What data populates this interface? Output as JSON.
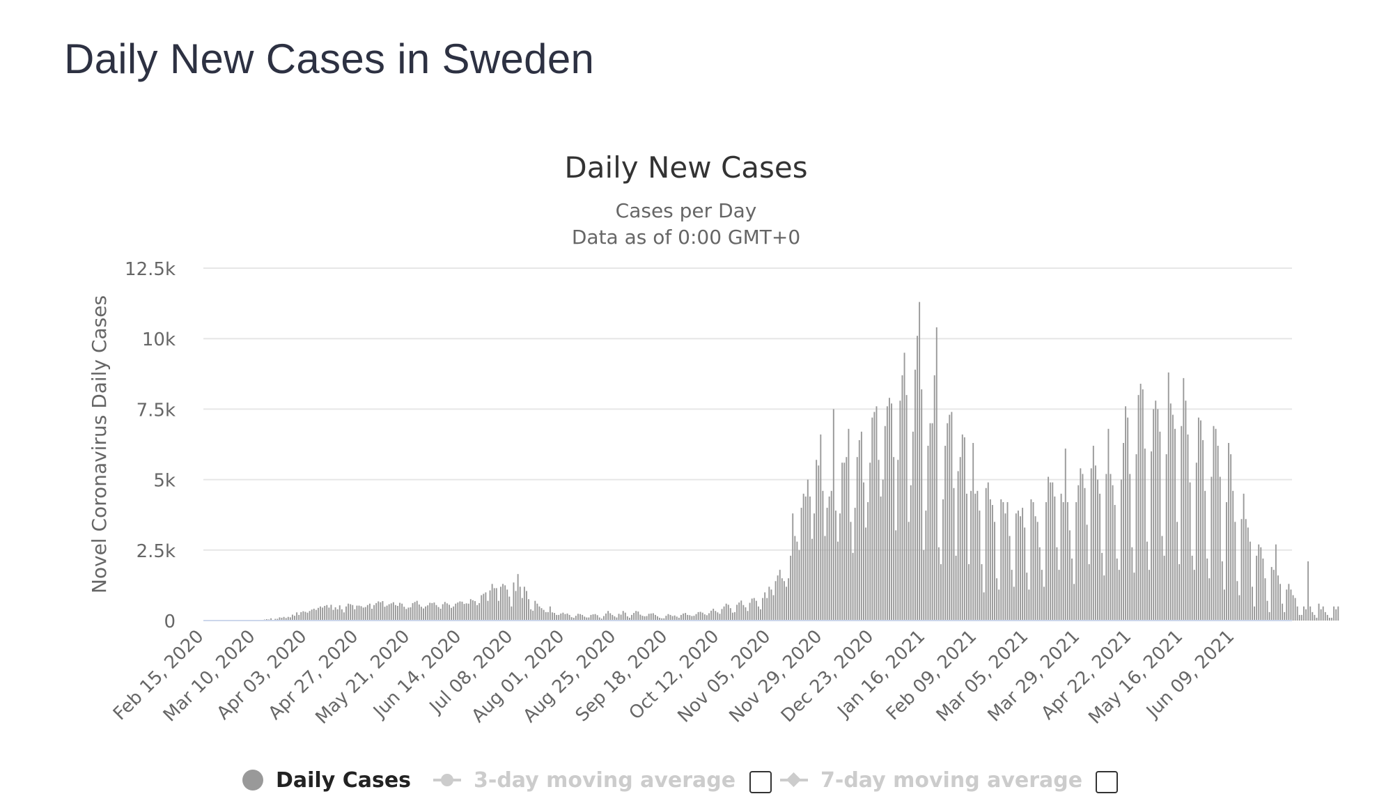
{
  "page": {
    "title": "Daily New Cases in Sweden"
  },
  "colors": {
    "bar": "#999999",
    "grid": "#e6e6e6",
    "axis": "#ccd6eb",
    "text": "#333333",
    "legend_inactive": "#cccccc"
  },
  "chart_data": {
    "type": "bar",
    "title": "Daily New Cases",
    "subtitle_lines": [
      "Cases per Day",
      "Data as of 0:00 GMT+0"
    ],
    "ylabel": "Novel Coronavirus Daily Cases",
    "xlabel": "",
    "ylim": [
      0,
      12500
    ],
    "yticks": [
      0,
      2500,
      5000,
      7500,
      10000,
      12500
    ],
    "ytick_labels": [
      "0",
      "2.5k",
      "5k",
      "7.5k",
      "10k",
      "12.5k"
    ],
    "grid": true,
    "x_start": "Feb 15, 2020",
    "x_tick_labels": [
      "Feb 15, 2020",
      "Mar 10, 2020",
      "Apr 03, 2020",
      "Apr 27, 2020",
      "May 21, 2020",
      "Jun 14, 2020",
      "Jul 08, 2020",
      "Aug 01, 2020",
      "Aug 25, 2020",
      "Sep 18, 2020",
      "Oct 12, 2020",
      "Nov 05, 2020",
      "Nov 29, 2020",
      "Dec 23, 2020",
      "Jan 16, 2021",
      "Feb 09, 2021",
      "Mar 05, 2021",
      "Mar 29, 2021",
      "Apr 22, 2021",
      "May 16, 2021",
      "Jun 09, 2021"
    ],
    "x_tick_interval_days": 24,
    "total_days": 507,
    "series": [
      {
        "name": "Daily Cases",
        "description": "Daily bar values estimated from gridlines; missing/zero days (weekends) included as 0.",
        "values": [
          0,
          0,
          0,
          0,
          0,
          0,
          0,
          0,
          0,
          0,
          0,
          0,
          0,
          0,
          0,
          0,
          0,
          0,
          0,
          0,
          0,
          0,
          0,
          0,
          0,
          1,
          10,
          14,
          36,
          50,
          40,
          80,
          20,
          61,
          63,
          114,
          100,
          129,
          92,
          131,
          115,
          210,
          170,
          290,
          200,
          300,
          330,
          310,
          280,
          340,
          390,
          420,
          380,
          450,
          500,
          460,
          520,
          550,
          460,
          560,
          380,
          470,
          400,
          540,
          400,
          290,
          500,
          600,
          580,
          550,
          400,
          530,
          530,
          510,
          460,
          480,
          550,
          600,
          420,
          550,
          620,
          680,
          650,
          690,
          490,
          530,
          580,
          610,
          650,
          550,
          520,
          630,
          600,
          490,
          410,
          460,
          470,
          620,
          660,
          700,
          570,
          490,
          430,
          500,
          540,
          630,
          620,
          640,
          550,
          480,
          420,
          580,
          660,
          610,
          560,
          450,
          500,
          600,
          640,
          680,
          670,
          590,
          610,
          600,
          760,
          720,
          690,
          550,
          620,
          900,
          950,
          1000,
          700,
          1070,
          1300,
          1150,
          1150,
          700,
          1200,
          1300,
          1250,
          1100,
          850,
          500,
          1350,
          1050,
          1650,
          1200,
          800,
          1200,
          1050,
          760,
          400,
          350,
          700,
          600,
          500,
          440,
          380,
          300,
          300,
          500,
          290,
          270,
          200,
          200,
          250,
          280,
          230,
          250,
          200,
          120,
          100,
          170,
          240,
          230,
          200,
          140,
          110,
          110,
          200,
          220,
          230,
          190,
          110,
          70,
          160,
          250,
          340,
          260,
          200,
          150,
          110,
          240,
          210,
          340,
          280,
          150,
          100,
          200,
          270,
          340,
          320,
          210,
          170,
          150,
          160,
          240,
          250,
          260,
          200,
          150,
          100,
          80,
          80,
          170,
          230,
          200,
          160,
          180,
          140,
          100,
          200,
          250,
          270,
          200,
          190,
          160,
          170,
          230,
          300,
          310,
          280,
          220,
          190,
          260,
          350,
          420,
          340,
          290,
          240,
          410,
          500,
          600,
          560,
          440,
          280,
          300,
          560,
          640,
          710,
          550,
          470,
          340,
          630,
          780,
          800,
          700,
          500,
          400,
          800,
          1000,
          800,
          1200,
          1100,
          900,
          1400,
          1600,
          1800,
          1500,
          1400,
          1200,
          1500,
          2300,
          3800,
          3000,
          2800,
          2500,
          4000,
          4500,
          4400,
          5000,
          4400,
          2900,
          3800,
          5700,
          5500,
          6600,
          4600,
          3000,
          4000,
          4400,
          4600,
          7500,
          3900,
          2800,
          3800,
          5600,
          5600,
          5800,
          6800,
          3500,
          2400,
          4000,
          5800,
          6400,
          6700,
          4900,
          3300,
          4200,
          5600,
          7200,
          7400,
          7600,
          5700,
          4400,
          5000,
          6900,
          7600,
          7900,
          7700,
          5800,
          3200,
          5700,
          7800,
          8700,
          9500,
          8000,
          3500,
          4800,
          6700,
          8900,
          10100,
          11300,
          8200,
          2500,
          3900,
          6200,
          7000,
          7000,
          8700,
          10400,
          2600,
          2000,
          4300,
          6200,
          7000,
          7300,
          7400,
          4700,
          2300,
          5300,
          5800,
          6600,
          6500,
          4500,
          2000,
          4600,
          6300,
          4500,
          4600,
          3900,
          2000,
          1000,
          4700,
          4900,
          4300,
          4100,
          3500,
          1500,
          1100,
          4300,
          4200,
          3800,
          4200,
          3000,
          1800,
          1200,
          3800,
          3900,
          3700,
          4000,
          3300,
          1700,
          1100,
          4300,
          4200,
          3700,
          3500,
          2600,
          1800,
          1200,
          4200,
          5100,
          4900,
          4900,
          4400,
          2600,
          1800,
          4500,
          4200,
          6100,
          4200,
          3200,
          2200,
          1300,
          4200,
          4800,
          5400,
          5200,
          4700,
          3400,
          2000,
          5400,
          6200,
          5500,
          5000,
          4500,
          2400,
          1600,
          5200,
          6800,
          5200,
          4800,
          4100,
          2200,
          1800,
          5000,
          6300,
          7600,
          7200,
          5200,
          2600,
          1700,
          5900,
          8000,
          8400,
          8200,
          6100,
          2800,
          1800,
          6000,
          7500,
          7800,
          7500,
          6700,
          3000,
          2300,
          5900,
          8800,
          7700,
          7300,
          6800,
          3500,
          2000,
          6900,
          8600,
          7800,
          6600,
          4900,
          2300,
          1800,
          5600,
          7200,
          7100,
          6400,
          4600,
          2200,
          1500,
          5100,
          6900,
          6800,
          6200,
          5100,
          2100,
          1100,
          4200,
          6300,
          5900,
          4600,
          3500,
          1400,
          900,
          3600,
          4500,
          3600,
          3300,
          2800,
          1200,
          500,
          2300,
          2700,
          2600,
          2200,
          1500,
          700,
          300,
          1900,
          1800,
          2700,
          1600,
          1300,
          600,
          300,
          1100,
          1300,
          1100,
          900,
          800,
          500,
          200,
          200,
          500,
          400,
          2100,
          500,
          300,
          200,
          100,
          600,
          400,
          500,
          300,
          200,
          100,
          100,
          500,
          400,
          500
        ]
      }
    ],
    "legend": [
      {
        "name": "Daily Cases",
        "enabled": true
      },
      {
        "name": "3-day moving average",
        "enabled": false
      },
      {
        "name": "7-day moving average",
        "enabled": false
      }
    ],
    "legend_position": "bottom-center"
  }
}
